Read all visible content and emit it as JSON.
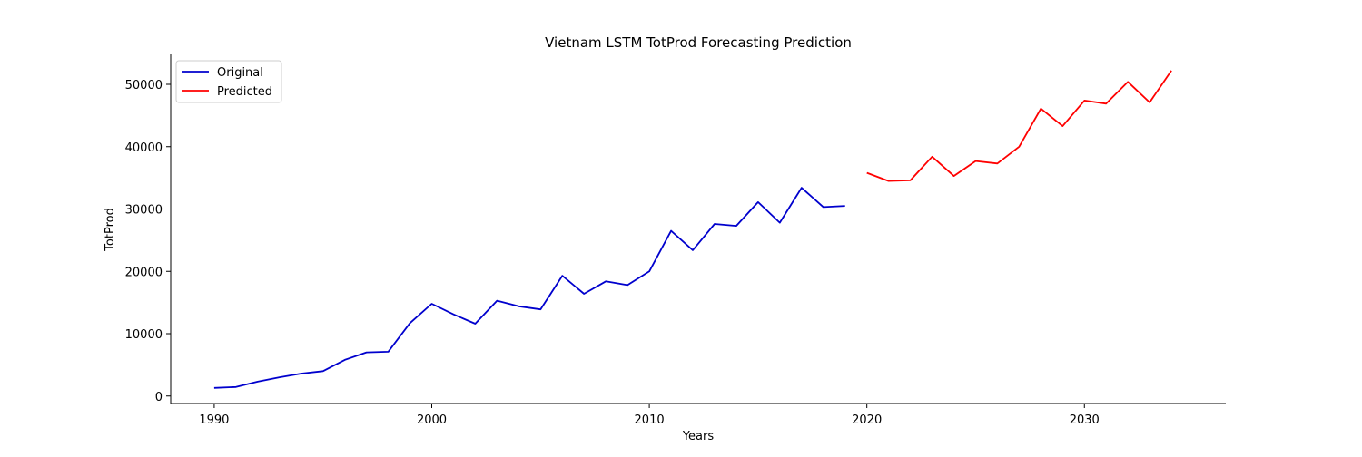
{
  "chart_data": {
    "type": "line",
    "title": "Vietnam LSTM TotProd Forecasting Prediction",
    "xlabel": "Years",
    "ylabel": "TotProd",
    "xlim": [
      1988,
      2036.5
    ],
    "ylim": [
      -1200,
      54800
    ],
    "xticks": [
      1990,
      2000,
      2010,
      2020,
      2030
    ],
    "yticks": [
      0,
      10000,
      20000,
      30000,
      40000,
      50000
    ],
    "grid": false,
    "legend_position": "top-left",
    "series": [
      {
        "name": "Original",
        "color": "#0000cd",
        "x": [
          1990,
          1991,
          1992,
          1993,
          1994,
          1995,
          1996,
          1997,
          1998,
          1999,
          2000,
          2001,
          2002,
          2003,
          2004,
          2005,
          2006,
          2007,
          2008,
          2009,
          2010,
          2011,
          2012,
          2013,
          2014,
          2015,
          2016,
          2017,
          2018,
          2019
        ],
        "values": [
          1300,
          1450,
          2300,
          3000,
          3600,
          4000,
          5800,
          7000,
          7100,
          11700,
          14800,
          13100,
          11600,
          15300,
          14400,
          13900,
          19300,
          16400,
          18400,
          17800,
          20000,
          26500,
          23400,
          27600,
          27300,
          31100,
          27800,
          33400,
          30300,
          30500
        ]
      },
      {
        "name": "Predicted",
        "color": "#ff0000",
        "x": [
          2020,
          2021,
          2022,
          2023,
          2024,
          2025,
          2026,
          2027,
          2028,
          2029,
          2030,
          2031,
          2032,
          2033,
          2034
        ],
        "values": [
          35800,
          34500,
          34600,
          38400,
          35300,
          37700,
          37300,
          40000,
          46100,
          43300,
          47400,
          46900,
          50400,
          47100,
          52200
        ]
      }
    ]
  }
}
